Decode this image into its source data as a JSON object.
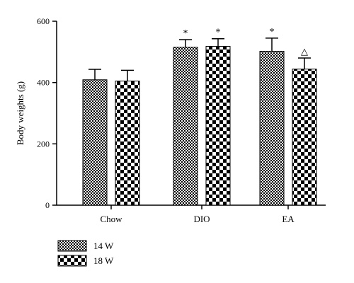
{
  "chart_data": {
    "type": "bar",
    "title": "",
    "xlabel": "",
    "ylabel": "Body weights (g)",
    "ylim": [
      0,
      600
    ],
    "yticks": [
      "0",
      "200",
      "400",
      "600"
    ],
    "categories": [
      "Chow",
      "DIO",
      "EA"
    ],
    "series": [
      {
        "name": "14 W",
        "values": [
          409,
          515,
          502
        ],
        "errors": [
          34,
          25,
          43
        ],
        "markers": [
          "",
          "*",
          "*"
        ],
        "pattern": "fine-checker"
      },
      {
        "name": "18 W",
        "values": [
          405,
          518,
          444
        ],
        "errors": [
          35,
          25,
          36
        ],
        "markers": [
          "",
          "*",
          "△"
        ],
        "pattern": "coarse-checker"
      }
    ],
    "grid": false,
    "legend_position": "bottom-left",
    "colors": {
      "bar_dark": "#000000",
      "bar_light": "#ffffff",
      "axis": "#000000"
    }
  }
}
